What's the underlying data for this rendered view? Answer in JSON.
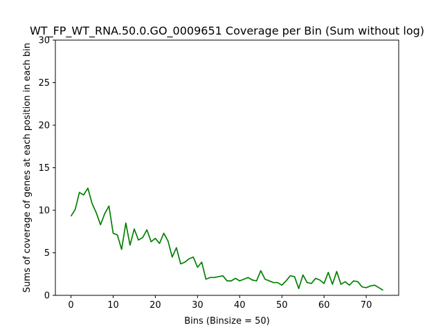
{
  "chart_data": {
    "type": "line",
    "title": "WT_FP_WT_RNA.50.0.GO_0009651 Coverage per Bin (Sum without log)",
    "xlabel": "Bins (Binsize = 50)",
    "ylabel": "Sums of coverage of genes at each position in each bin",
    "xlim": [
      -3.7,
      77.7
    ],
    "ylim": [
      0,
      30
    ],
    "xticks": [
      0,
      10,
      20,
      30,
      40,
      50,
      60,
      70
    ],
    "yticks": [
      0,
      5,
      10,
      15,
      20,
      25,
      30
    ],
    "grid": false,
    "series": [
      {
        "color": "#008000",
        "x": [
          0,
          1,
          2,
          3,
          4,
          5,
          6,
          7,
          8,
          9,
          10,
          11,
          12,
          13,
          14,
          15,
          16,
          17,
          18,
          19,
          20,
          21,
          22,
          23,
          24,
          25,
          26,
          27,
          28,
          29,
          30,
          31,
          32,
          33,
          34,
          35,
          36,
          37,
          38,
          39,
          40,
          41,
          42,
          43,
          44,
          45,
          46,
          47,
          48,
          49,
          50,
          51,
          52,
          53,
          54,
          55,
          56,
          57,
          58,
          59,
          60,
          61,
          62,
          63,
          64,
          65,
          66,
          67,
          68,
          69,
          70,
          71,
          72,
          73,
          74
        ],
        "y": [
          9.3,
          10.1,
          12.1,
          11.8,
          12.6,
          10.8,
          9.7,
          8.3,
          9.6,
          10.5,
          7.3,
          7.1,
          5.4,
          8.5,
          5.9,
          7.8,
          6.5,
          6.8,
          7.7,
          6.3,
          6.7,
          6.1,
          7.3,
          6.4,
          4.5,
          5.6,
          3.7,
          3.9,
          4.3,
          4.5,
          3.3,
          3.9,
          1.9,
          2.1,
          2.1,
          2.2,
          2.3,
          1.7,
          1.7,
          2.0,
          1.7,
          1.9,
          2.1,
          1.8,
          1.7,
          2.9,
          1.9,
          1.7,
          1.5,
          1.5,
          1.2,
          1.7,
          2.3,
          2.2,
          0.8,
          2.4,
          1.5,
          1.4,
          2.0,
          1.8,
          1.4,
          2.7,
          1.3,
          2.8,
          1.3,
          1.6,
          1.2,
          1.7,
          1.6,
          1.0,
          0.9,
          1.1,
          1.2,
          0.9,
          0.6
        ]
      }
    ]
  }
}
